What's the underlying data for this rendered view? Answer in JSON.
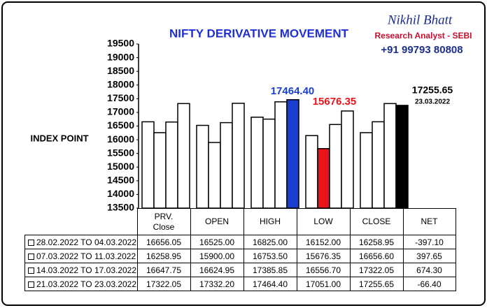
{
  "chart_data": {
    "type": "bar",
    "title": "NIFTY DERIVATIVE MOVEMENT",
    "brand": {
      "name": "Nikhil Bhatt",
      "role": "Research Analyst - SEBI",
      "phone": "+91 99793 80808"
    },
    "y_label": "INDEX POINT",
    "categories": [
      "PRV.\nClose",
      "OPEN",
      "HIGH",
      "LOW",
      "CLOSE"
    ],
    "net_header": "NET",
    "annotations": [
      "23.03.2022"
    ],
    "ylim": [
      13500,
      19500
    ],
    "yticks": [
      13500,
      14000,
      14500,
      15000,
      15500,
      16000,
      16500,
      17000,
      17500,
      18000,
      18500,
      19000,
      19500
    ],
    "grid": false,
    "series": [
      {
        "name": "28.02.2022 TO 04.03.2022",
        "colors": [
          "#ffffff",
          "#ffffff",
          "#ffffff",
          "#ffffff",
          "#ffffff"
        ],
        "values": [
          16656.05,
          16525.0,
          16825.0,
          16152.0,
          16258.95
        ],
        "value_labels": [
          "16656.05",
          "16525.00",
          "16825.00",
          "16152.00",
          "16258.95"
        ],
        "net": "-397.10"
      },
      {
        "name": "07.03.2022 TO 11.03.2022",
        "colors": [
          "#ffffff",
          "#ffffff",
          "#ffffff",
          "#e8141b",
          "#ffffff"
        ],
        "values": [
          16258.95,
          15900.0,
          16753.5,
          15676.35,
          16656.6
        ],
        "value_labels": [
          "16258.95",
          "15900.00",
          "16753.50",
          "15676.35",
          "16656.60"
        ],
        "net": "397.65"
      },
      {
        "name": "14.03.2022 TO 17.03.2022",
        "colors": [
          "#ffffff",
          "#ffffff",
          "#ffffff",
          "#ffffff",
          "#ffffff"
        ],
        "values": [
          16647.75,
          16624.95,
          17385.85,
          16556.7,
          17322.05
        ],
        "value_labels": [
          "16647.75",
          "16624.95",
          "17385.85",
          "16556.70",
          "17322.05"
        ],
        "net": "674.30"
      },
      {
        "name": "21.03.2022 TO 23.03.2022",
        "colors": [
          "#ffffff",
          "#ffffff",
          "#1a3fd0",
          "#ffffff",
          "#000000"
        ],
        "values": [
          17322.05,
          17332.2,
          17464.4,
          17051.0,
          17255.65
        ],
        "value_labels": [
          "17322.05",
          "17332.20",
          "17464.40",
          "17051.00",
          "17255.65"
        ],
        "net": "-66.40"
      }
    ]
  }
}
